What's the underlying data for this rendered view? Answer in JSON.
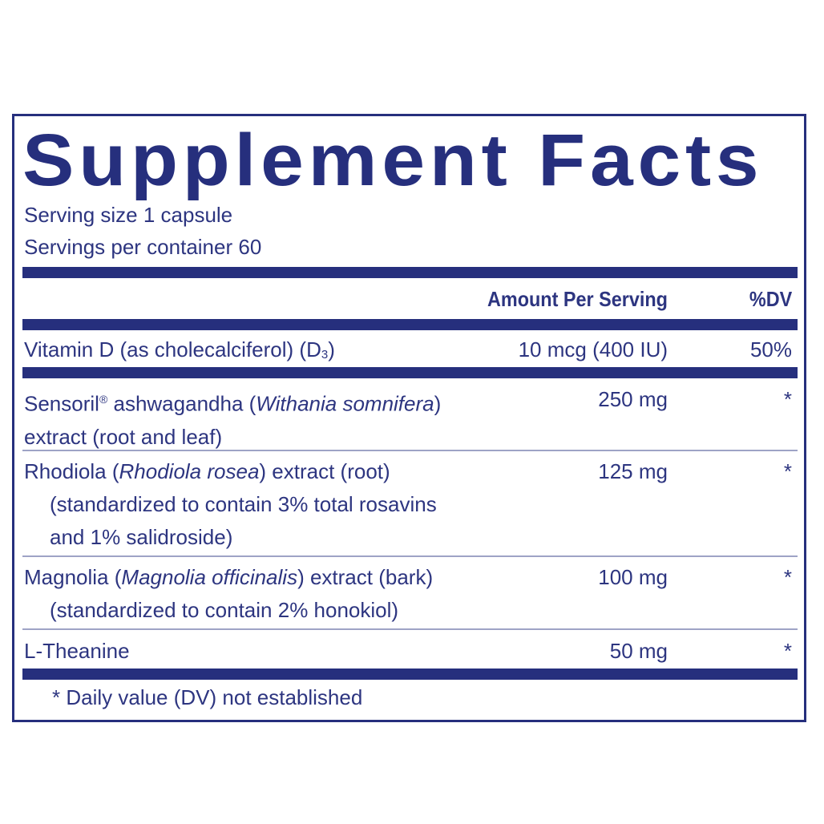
{
  "title": "Supplement Facts",
  "serving_size": "Serving size  1 capsule",
  "servings_per_container": "Servings per container  60",
  "header": {
    "amount": "Amount Per Serving",
    "dv": "%DV"
  },
  "rows": [
    {
      "name": "Vitamin D (as cholecalciferol) (D",
      "sub": "3",
      "name_end": ")",
      "amount": "10 mcg (400 IU)",
      "dv": "50%"
    },
    {
      "name": "Sensoril",
      "reg": "®",
      "name2": " ashwagandha (",
      "latin": "Withania somnifera",
      "name3": ")",
      "line2": "extract (root and leaf)",
      "amount": "250 mg",
      "dv": "*"
    },
    {
      "name": "Rhodiola (",
      "latin": "Rhodiola rosea",
      "name3": ") extract (root)",
      "line2": "(standardized to contain 3% total rosavins",
      "line3": "and 1% salidroside)",
      "amount": "125 mg",
      "dv": "*"
    },
    {
      "name": "Magnolia (",
      "latin": "Magnolia officinalis",
      "name3": ") extract (bark)",
      "line2": "(standardized to contain 2% honokiol)",
      "amount": "100 mg",
      "dv": "*"
    },
    {
      "name": "L-Theanine",
      "amount": "50 mg",
      "dv": "*"
    }
  ],
  "footnote": "* Daily value (DV) not established",
  "colors": {
    "navy": "#262f7d",
    "text": "#2d3580"
  }
}
